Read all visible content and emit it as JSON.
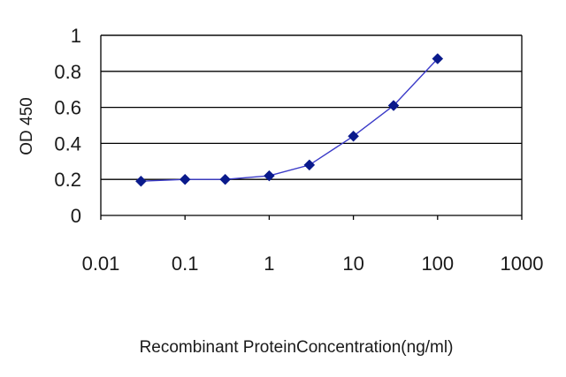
{
  "chart_data": {
    "type": "line",
    "xscale": "log",
    "xlim": [
      0.01,
      1000
    ],
    "ylim": [
      0,
      1
    ],
    "x_ticks": [
      "0.01",
      "0.1",
      "1",
      "10",
      "100",
      "1000"
    ],
    "y_ticks": [
      "0",
      "0.2",
      "0.4",
      "0.6",
      "0.8",
      "1"
    ],
    "xlabel": "Recombinant ProteinConcentration(ng/ml)",
    "ylabel": "OD 450",
    "grid": "horizontal",
    "series": [
      {
        "x": [
          0.03,
          0.1,
          0.3,
          1,
          3,
          10,
          30,
          100
        ],
        "y": [
          0.19,
          0.2,
          0.2,
          0.22,
          0.28,
          0.44,
          0.61,
          0.87
        ]
      }
    ],
    "colors": {
      "line": "#3a3ac8",
      "marker": "#0a1a8c",
      "plot_background": "#ffffff",
      "grid": "#000000"
    }
  }
}
